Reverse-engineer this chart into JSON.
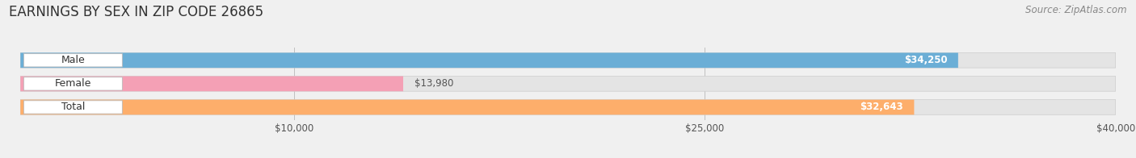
{
  "title": "EARNINGS BY SEX IN ZIP CODE 26865",
  "source": "Source: ZipAtlas.com",
  "categories": [
    "Male",
    "Female",
    "Total"
  ],
  "values": [
    34250,
    13980,
    32643
  ],
  "bar_colors": [
    "#6baed6",
    "#f4a0b5",
    "#fdae6b"
  ],
  "bg_color": "#f0f0f0",
  "bar_bg_color": "#e4e4e4",
  "xlim": [
    0,
    40000
  ],
  "xticks": [
    10000,
    25000,
    40000
  ],
  "xtick_labels": [
    "$10,000",
    "$25,000",
    "$40,000"
  ],
  "title_fontsize": 12,
  "source_fontsize": 8.5,
  "bar_height": 0.62,
  "value_label_fontsize": 8.5,
  "value_threshold": 20000
}
